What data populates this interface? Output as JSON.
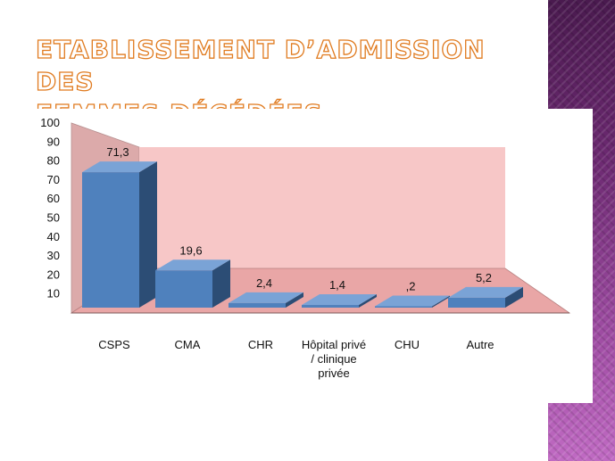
{
  "slide": {
    "title_line1": "Etablissement d’admission des",
    "title_line2": "femmes décédées"
  },
  "chart_data": {
    "type": "bar",
    "style": "3d",
    "categories": [
      "CSPS",
      "CMA",
      "CHR",
      "Hôpital privé / clinique privée",
      "CHU",
      "Autre"
    ],
    "category_lines": [
      [
        "CSPS"
      ],
      [
        "CMA"
      ],
      [
        "CHR"
      ],
      [
        "Hôpital privé",
        "/ clinique",
        "privée"
      ],
      [
        "CHU"
      ],
      [
        "Autre"
      ]
    ],
    "values": [
      71.3,
      19.6,
      2.4,
      1.4,
      0.2,
      5.2
    ],
    "data_labels": [
      "71,3",
      "19,6",
      "2,4",
      "1,4",
      ",2",
      "5,2"
    ],
    "y_ticks": [
      10,
      20,
      30,
      40,
      50,
      60,
      70,
      80,
      90,
      100
    ],
    "ylim": [
      0,
      100
    ],
    "title": "",
    "xlabel": "",
    "ylabel": "",
    "grid": false,
    "legend": "none",
    "colors": {
      "bar_front": "#4f81bd",
      "bar_side": "#2c4d75",
      "bar_top": "#7aa3d6",
      "back_wall": "#f7c7c7",
      "side_wall": "#dcaaaa",
      "floor": "#e9a6a6"
    }
  }
}
